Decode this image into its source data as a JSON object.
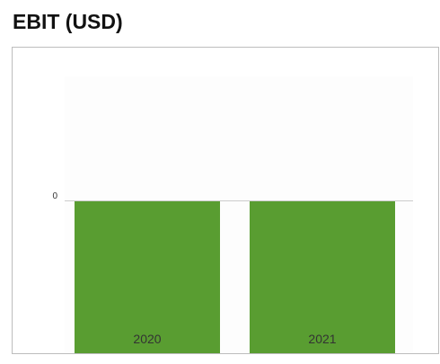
{
  "title": "EBIT (USD)",
  "colors": {
    "bar": "#599d31",
    "axis": "#cccccc",
    "plot_background": "#fdfdfd",
    "text": "#333333"
  },
  "chart_data": {
    "type": "bar",
    "categories": [
      "2020",
      "2021"
    ],
    "series": [
      {
        "values": [
          0,
          0
        ]
      }
    ],
    "y_ticks": [
      0
    ],
    "y_tick_labels": [
      "0"
    ],
    "xlabel": "",
    "ylabel": "",
    "grid": false,
    "legend": "none"
  }
}
